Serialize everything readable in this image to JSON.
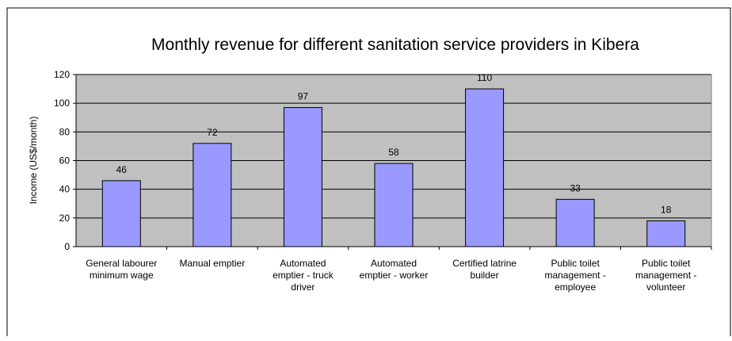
{
  "chart_data": {
    "type": "bar",
    "title": "Monthly revenue for different sanitation service providers in Kibera",
    "xlabel": "",
    "ylabel": "Income (US$/month)",
    "ylim": [
      0,
      120
    ],
    "yticks": [
      0,
      20,
      40,
      60,
      80,
      100,
      120
    ],
    "grid": true,
    "legend": "none",
    "categories": [
      [
        "General labourer",
        "minimum wage"
      ],
      [
        "Manual emptier"
      ],
      [
        "Automated",
        "emptier - truck",
        "driver"
      ],
      [
        "Automated",
        "emptier - worker"
      ],
      [
        "Certified latrine",
        "builder"
      ],
      [
        "Public toilet",
        "management -",
        "employee"
      ],
      [
        "Public toilet",
        "management -",
        "volunteer"
      ]
    ],
    "values": [
      46,
      72,
      97,
      58,
      110,
      33,
      18
    ],
    "colors": {
      "bar_fill": "#9999ff",
      "plot_background": "#c0c0c0",
      "gridline": "#000000",
      "border": "#000000"
    }
  }
}
